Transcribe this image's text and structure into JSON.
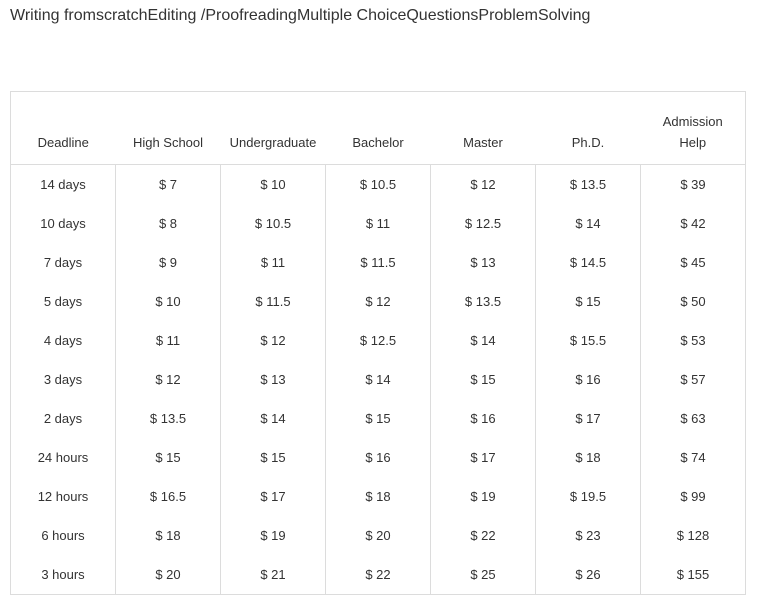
{
  "tabs": [
    {
      "lines": [
        "Writing from",
        "scratch"
      ],
      "active": true
    },
    {
      "lines": [
        "Editing /",
        "Proofreading"
      ],
      "active": false
    },
    {
      "lines": [
        "Multiple Choice",
        "Questions"
      ],
      "active": false
    },
    {
      "lines": [
        "Problem",
        "Solving"
      ],
      "active": false
    }
  ],
  "table": {
    "header": [
      [
        "Deadline"
      ],
      [
        "High School"
      ],
      [
        "Undergraduate"
      ],
      [
        "Bachelor"
      ],
      [
        "Master"
      ],
      [
        "Ph.D."
      ],
      [
        "Admission",
        "Help"
      ]
    ],
    "rows": [
      [
        "14 days",
        "$ 7",
        "$ 10",
        "$ 10.5",
        "$ 12",
        "$ 13.5",
        "$ 39"
      ],
      [
        "10 days",
        "$ 8",
        "$ 10.5",
        "$ 11",
        "$ 12.5",
        "$ 14",
        "$ 42"
      ],
      [
        "7 days",
        "$ 9",
        "$ 11",
        "$ 11.5",
        "$ 13",
        "$ 14.5",
        "$ 45"
      ],
      [
        "5 days",
        "$ 10",
        "$ 11.5",
        "$ 12",
        "$ 13.5",
        "$ 15",
        "$ 50"
      ],
      [
        "4 days",
        "$ 11",
        "$ 12",
        "$ 12.5",
        "$ 14",
        "$ 15.5",
        "$ 53"
      ],
      [
        "3 days",
        "$ 12",
        "$ 13",
        "$ 14",
        "$ 15",
        "$ 16",
        "$ 57"
      ],
      [
        "2 days",
        "$ 13.5",
        "$ 14",
        "$ 15",
        "$ 16",
        "$ 17",
        "$ 63"
      ],
      [
        "24 hours",
        "$ 15",
        "$ 15",
        "$ 16",
        "$ 17",
        "$ 18",
        "$ 74"
      ],
      [
        "12 hours",
        "$ 16.5",
        "$ 17",
        "$ 18",
        "$ 19",
        "$ 19.5",
        "$ 99"
      ],
      [
        "6 hours",
        "$ 18",
        "$ 19",
        "$ 20",
        "$ 22",
        "$ 23",
        "$ 128"
      ],
      [
        "3 hours",
        "$ 20",
        "$ 21",
        "$ 22",
        "$ 25",
        "$ 26",
        "$ 155"
      ]
    ]
  }
}
